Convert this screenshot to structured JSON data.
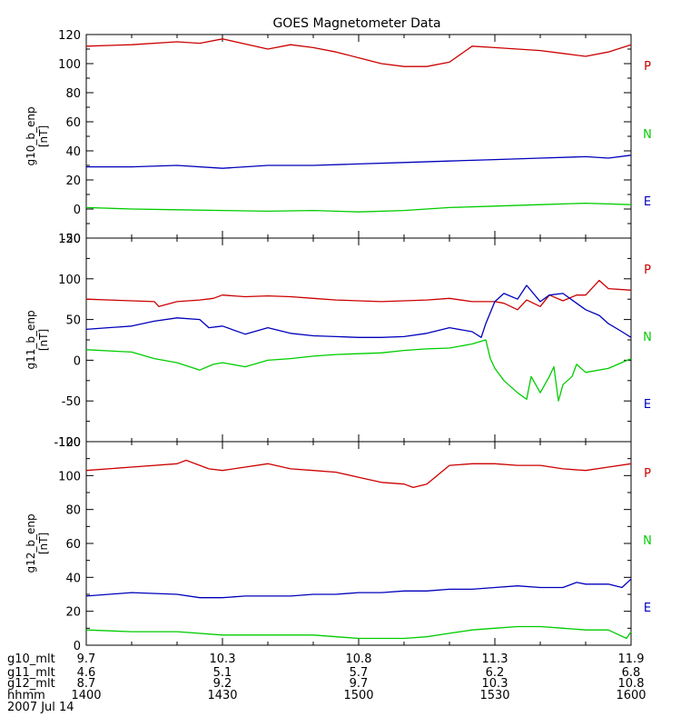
{
  "title": "GOES Magnetometer Data",
  "colors": {
    "P": "#cc0000",
    "N": "#00cc00",
    "E": "#0000bb",
    "axis": "#000000"
  },
  "chart_data": [
    {
      "type": "line",
      "ylabel": "g10_b_enp",
      "yunit": "[nT]",
      "ylim": [
        -20,
        120
      ],
      "yticks": [
        -20,
        0,
        20,
        40,
        60,
        80,
        100,
        120
      ],
      "ytick_labels": [
        "-20",
        "0",
        "20",
        "40",
        "60",
        "80",
        "100",
        "120"
      ],
      "xlim": [
        0,
        120
      ],
      "grid": false,
      "legend_position": "right",
      "series": [
        {
          "name": "P",
          "color": "P",
          "x": [
            0,
            10,
            20,
            25,
            30,
            40,
            45,
            50,
            55,
            60,
            65,
            70,
            75,
            80,
            85,
            90,
            95,
            100,
            105,
            110,
            115,
            120
          ],
          "y": [
            112,
            113,
            115,
            114,
            117,
            110,
            113,
            111,
            108,
            104,
            100,
            98,
            98,
            101,
            112,
            111,
            110,
            109,
            107,
            105,
            108,
            113
          ]
        },
        {
          "name": "N",
          "color": "N",
          "x": [
            0,
            10,
            20,
            30,
            40,
            50,
            60,
            70,
            80,
            90,
            100,
            110,
            120
          ],
          "y": [
            1,
            0,
            -0.5,
            -1,
            -1.5,
            -1,
            -2,
            -1,
            1,
            2,
            3,
            4,
            3
          ]
        },
        {
          "name": "E",
          "color": "E",
          "x": [
            0,
            10,
            20,
            30,
            40,
            50,
            60,
            70,
            80,
            90,
            100,
            110,
            115,
            120
          ],
          "y": [
            29,
            29,
            30,
            28,
            30,
            30,
            31,
            32,
            33,
            34,
            35,
            36,
            35,
            37
          ]
        }
      ]
    },
    {
      "type": "line",
      "ylabel": "g11_b_enp",
      "yunit": "[nT]",
      "ylim": [
        -100,
        150
      ],
      "yticks": [
        -100,
        -50,
        0,
        50,
        100,
        150
      ],
      "ytick_labels": [
        "-100",
        "-50",
        "0",
        "50",
        "100",
        "150"
      ],
      "xlim": [
        0,
        120
      ],
      "grid": false,
      "legend_position": "right",
      "series": [
        {
          "name": "P",
          "color": "P",
          "x": [
            0,
            10,
            15,
            16,
            20,
            25,
            28,
            30,
            35,
            40,
            45,
            50,
            55,
            60,
            65,
            70,
            75,
            80,
            85,
            90,
            92,
            95,
            97,
            100,
            102,
            105,
            108,
            110,
            113,
            115,
            120
          ],
          "y": [
            75,
            73,
            72,
            66,
            72,
            74,
            76,
            80,
            78,
            79,
            78,
            76,
            74,
            73,
            72,
            73,
            74,
            76,
            72,
            72,
            70,
            62,
            74,
            66,
            80,
            73,
            80,
            80,
            98,
            88,
            86
          ]
        },
        {
          "name": "N",
          "color": "N",
          "x": [
            0,
            10,
            15,
            20,
            25,
            28,
            30,
            35,
            40,
            45,
            50,
            55,
            60,
            65,
            70,
            75,
            80,
            85,
            88,
            89,
            90,
            92,
            95,
            97,
            98,
            100,
            102,
            103,
            104,
            105,
            107,
            108,
            110,
            115,
            120
          ],
          "y": [
            13,
            10,
            2,
            -3,
            -12,
            -5,
            -3,
            -8,
            0,
            2,
            5,
            7,
            8,
            9,
            12,
            14,
            15,
            20,
            25,
            2,
            -10,
            -25,
            -40,
            -48,
            -20,
            -40,
            -20,
            -8,
            -50,
            -30,
            -20,
            -5,
            -15,
            -10,
            2
          ]
        },
        {
          "name": "E",
          "color": "E",
          "x": [
            0,
            10,
            15,
            20,
            25,
            27,
            30,
            35,
            40,
            45,
            50,
            55,
            60,
            65,
            70,
            75,
            80,
            85,
            87,
            88,
            90,
            92,
            95,
            97,
            100,
            102,
            105,
            108,
            110,
            113,
            115,
            118,
            120
          ],
          "y": [
            38,
            42,
            48,
            52,
            50,
            40,
            42,
            32,
            40,
            33,
            30,
            29,
            28,
            28,
            29,
            33,
            40,
            35,
            28,
            45,
            72,
            82,
            75,
            92,
            72,
            80,
            82,
            70,
            62,
            55,
            45,
            35,
            28
          ]
        }
      ]
    },
    {
      "type": "line",
      "ylabel": "g12_b_enp",
      "yunit": "[nT]",
      "ylim": [
        0,
        120
      ],
      "yticks": [
        0,
        20,
        40,
        60,
        80,
        100,
        120
      ],
      "ytick_labels": [
        "0",
        "20",
        "40",
        "60",
        "80",
        "100",
        "120"
      ],
      "xlim": [
        0,
        120
      ],
      "grid": false,
      "legend_position": "right",
      "series": [
        {
          "name": "P",
          "color": "P",
          "x": [
            0,
            10,
            20,
            22,
            27,
            30,
            35,
            40,
            45,
            50,
            55,
            60,
            65,
            70,
            72,
            75,
            80,
            85,
            90,
            95,
            100,
            105,
            110,
            115,
            120
          ],
          "y": [
            103,
            105,
            107,
            109,
            104,
            103,
            105,
            107,
            104,
            103,
            102,
            99,
            96,
            95,
            93,
            95,
            106,
            107,
            107,
            106,
            106,
            104,
            103,
            105,
            107
          ]
        },
        {
          "name": "N",
          "color": "N",
          "x": [
            0,
            10,
            20,
            30,
            40,
            50,
            60,
            65,
            70,
            75,
            80,
            85,
            90,
            95,
            100,
            105,
            110,
            115,
            119,
            120
          ],
          "y": [
            9,
            8,
            8,
            6,
            6,
            6,
            4,
            4,
            4,
            5,
            7,
            9,
            10,
            11,
            11,
            10,
            9,
            9,
            4,
            8
          ]
        },
        {
          "name": "E",
          "color": "E",
          "x": [
            0,
            10,
            20,
            25,
            30,
            35,
            40,
            45,
            50,
            55,
            60,
            65,
            70,
            75,
            80,
            85,
            90,
            95,
            100,
            105,
            108,
            110,
            115,
            118,
            120
          ],
          "y": [
            29,
            31,
            30,
            28,
            28,
            29,
            29,
            29,
            30,
            30,
            31,
            31,
            32,
            32,
            33,
            33,
            34,
            35,
            34,
            34,
            37,
            36,
            36,
            34,
            39
          ]
        }
      ]
    }
  ],
  "xaxis": {
    "rows": [
      {
        "label": "g10_mlt",
        "values": [
          "9.7",
          "10.3",
          "10.8",
          "11.3",
          "11.9"
        ]
      },
      {
        "label": "g11_mlt",
        "values": [
          "4.6",
          "5.1",
          "5.7",
          "6.2",
          "6.8"
        ]
      },
      {
        "label": "g12_mlt",
        "values": [
          "8.7",
          "9.2",
          "9.7",
          "10.3",
          "10.8"
        ]
      },
      {
        "label": "hhmm",
        "values": [
          "1400",
          "1430",
          "1500",
          "1530",
          "1600"
        ]
      }
    ],
    "date": "2007 Jul 14",
    "major_ticks": [
      0,
      30,
      60,
      90,
      120
    ],
    "minor_ticks": [
      10,
      20,
      40,
      50,
      70,
      80,
      100,
      110
    ]
  },
  "legend_labels": [
    "P",
    "N",
    "E"
  ]
}
